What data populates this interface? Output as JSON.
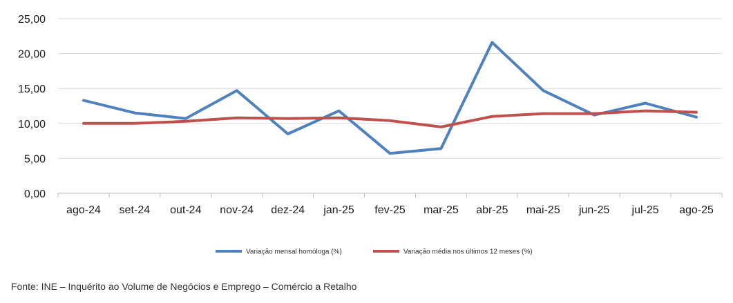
{
  "chart_data": {
    "type": "line",
    "categories": [
      "ago-24",
      "set-24",
      "out-24",
      "nov-24",
      "dez-24",
      "jan-25",
      "fev-25",
      "mar-25",
      "abr-25",
      "mai-25",
      "jun-25",
      "jul-25",
      "ago-25"
    ],
    "series": [
      {
        "name": "Variação mensal homóloga (%)",
        "color": "#4f81bd",
        "values": [
          13.3,
          11.5,
          10.7,
          14.7,
          8.5,
          11.8,
          5.7,
          6.4,
          21.6,
          14.7,
          11.2,
          12.9,
          10.9
        ]
      },
      {
        "name": "Variação média nos últimos 12 meses (%)",
        "color": "#c0504d",
        "values": [
          10.0,
          10.0,
          10.3,
          10.8,
          10.7,
          10.8,
          10.4,
          9.5,
          11.0,
          11.4,
          11.4,
          11.8,
          11.6
        ]
      }
    ],
    "yticks": [
      "0,00",
      "5,00",
      "10,00",
      "15,00",
      "20,00",
      "25,00"
    ],
    "ylim": [
      0,
      25
    ],
    "grid": true,
    "legend": "bottom"
  },
  "source": "Fonte: INE – Inquérito ao Volume de Negócios e Emprego – Comércio a Retalho"
}
